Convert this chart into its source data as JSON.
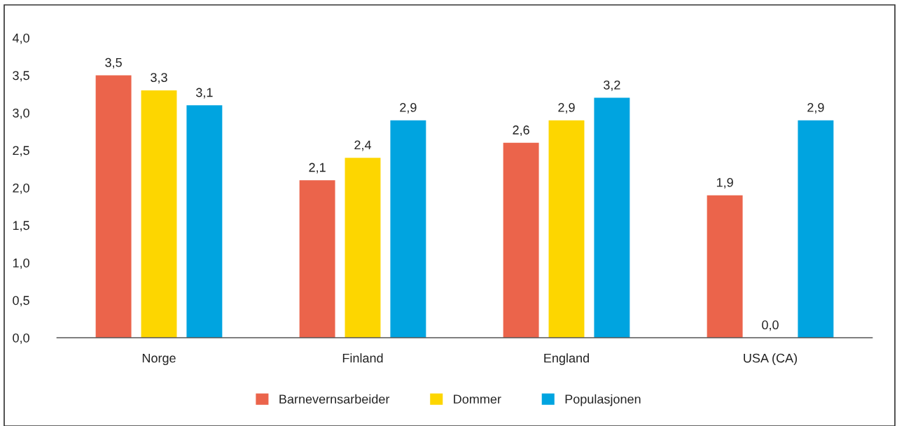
{
  "chart_data": {
    "type": "bar",
    "categories": [
      "Norge",
      "Finland",
      "England",
      "USA (CA)"
    ],
    "series": [
      {
        "name": "Barnevernsarbeider",
        "color": "#eb644b",
        "values": [
          3.5,
          2.1,
          2.6,
          1.9
        ],
        "value_labels": [
          "3,5",
          "2,1",
          "2,6",
          "1,9"
        ]
      },
      {
        "name": "Dommer",
        "color": "#fdd600",
        "values": [
          3.3,
          2.4,
          2.9,
          0.0
        ],
        "value_labels": [
          "3,3",
          "2,4",
          "2,9",
          "0,0"
        ]
      },
      {
        "name": "Populasjonen",
        "color": "#00a4e0",
        "values": [
          3.1,
          2.9,
          3.2,
          2.9
        ],
        "value_labels": [
          "3,1",
          "2,9",
          "3,2",
          "2,9"
        ]
      }
    ],
    "ylim": [
      0,
      4.0
    ],
    "yticks": [
      {
        "value": 0,
        "label": "0,0"
      },
      {
        "value": 0.5,
        "label": "0,5"
      },
      {
        "value": 1.0,
        "label": "1,0"
      },
      {
        "value": 1.5,
        "label": "1,5"
      },
      {
        "value": 2.0,
        "label": "2,0"
      },
      {
        "value": 2.5,
        "label": "2,5"
      },
      {
        "value": 3.0,
        "label": "3,0"
      },
      {
        "value": 3.5,
        "label": "3,5"
      },
      {
        "value": 4.0,
        "label": "4,0"
      }
    ],
    "grid": false,
    "legend": "bottom"
  }
}
